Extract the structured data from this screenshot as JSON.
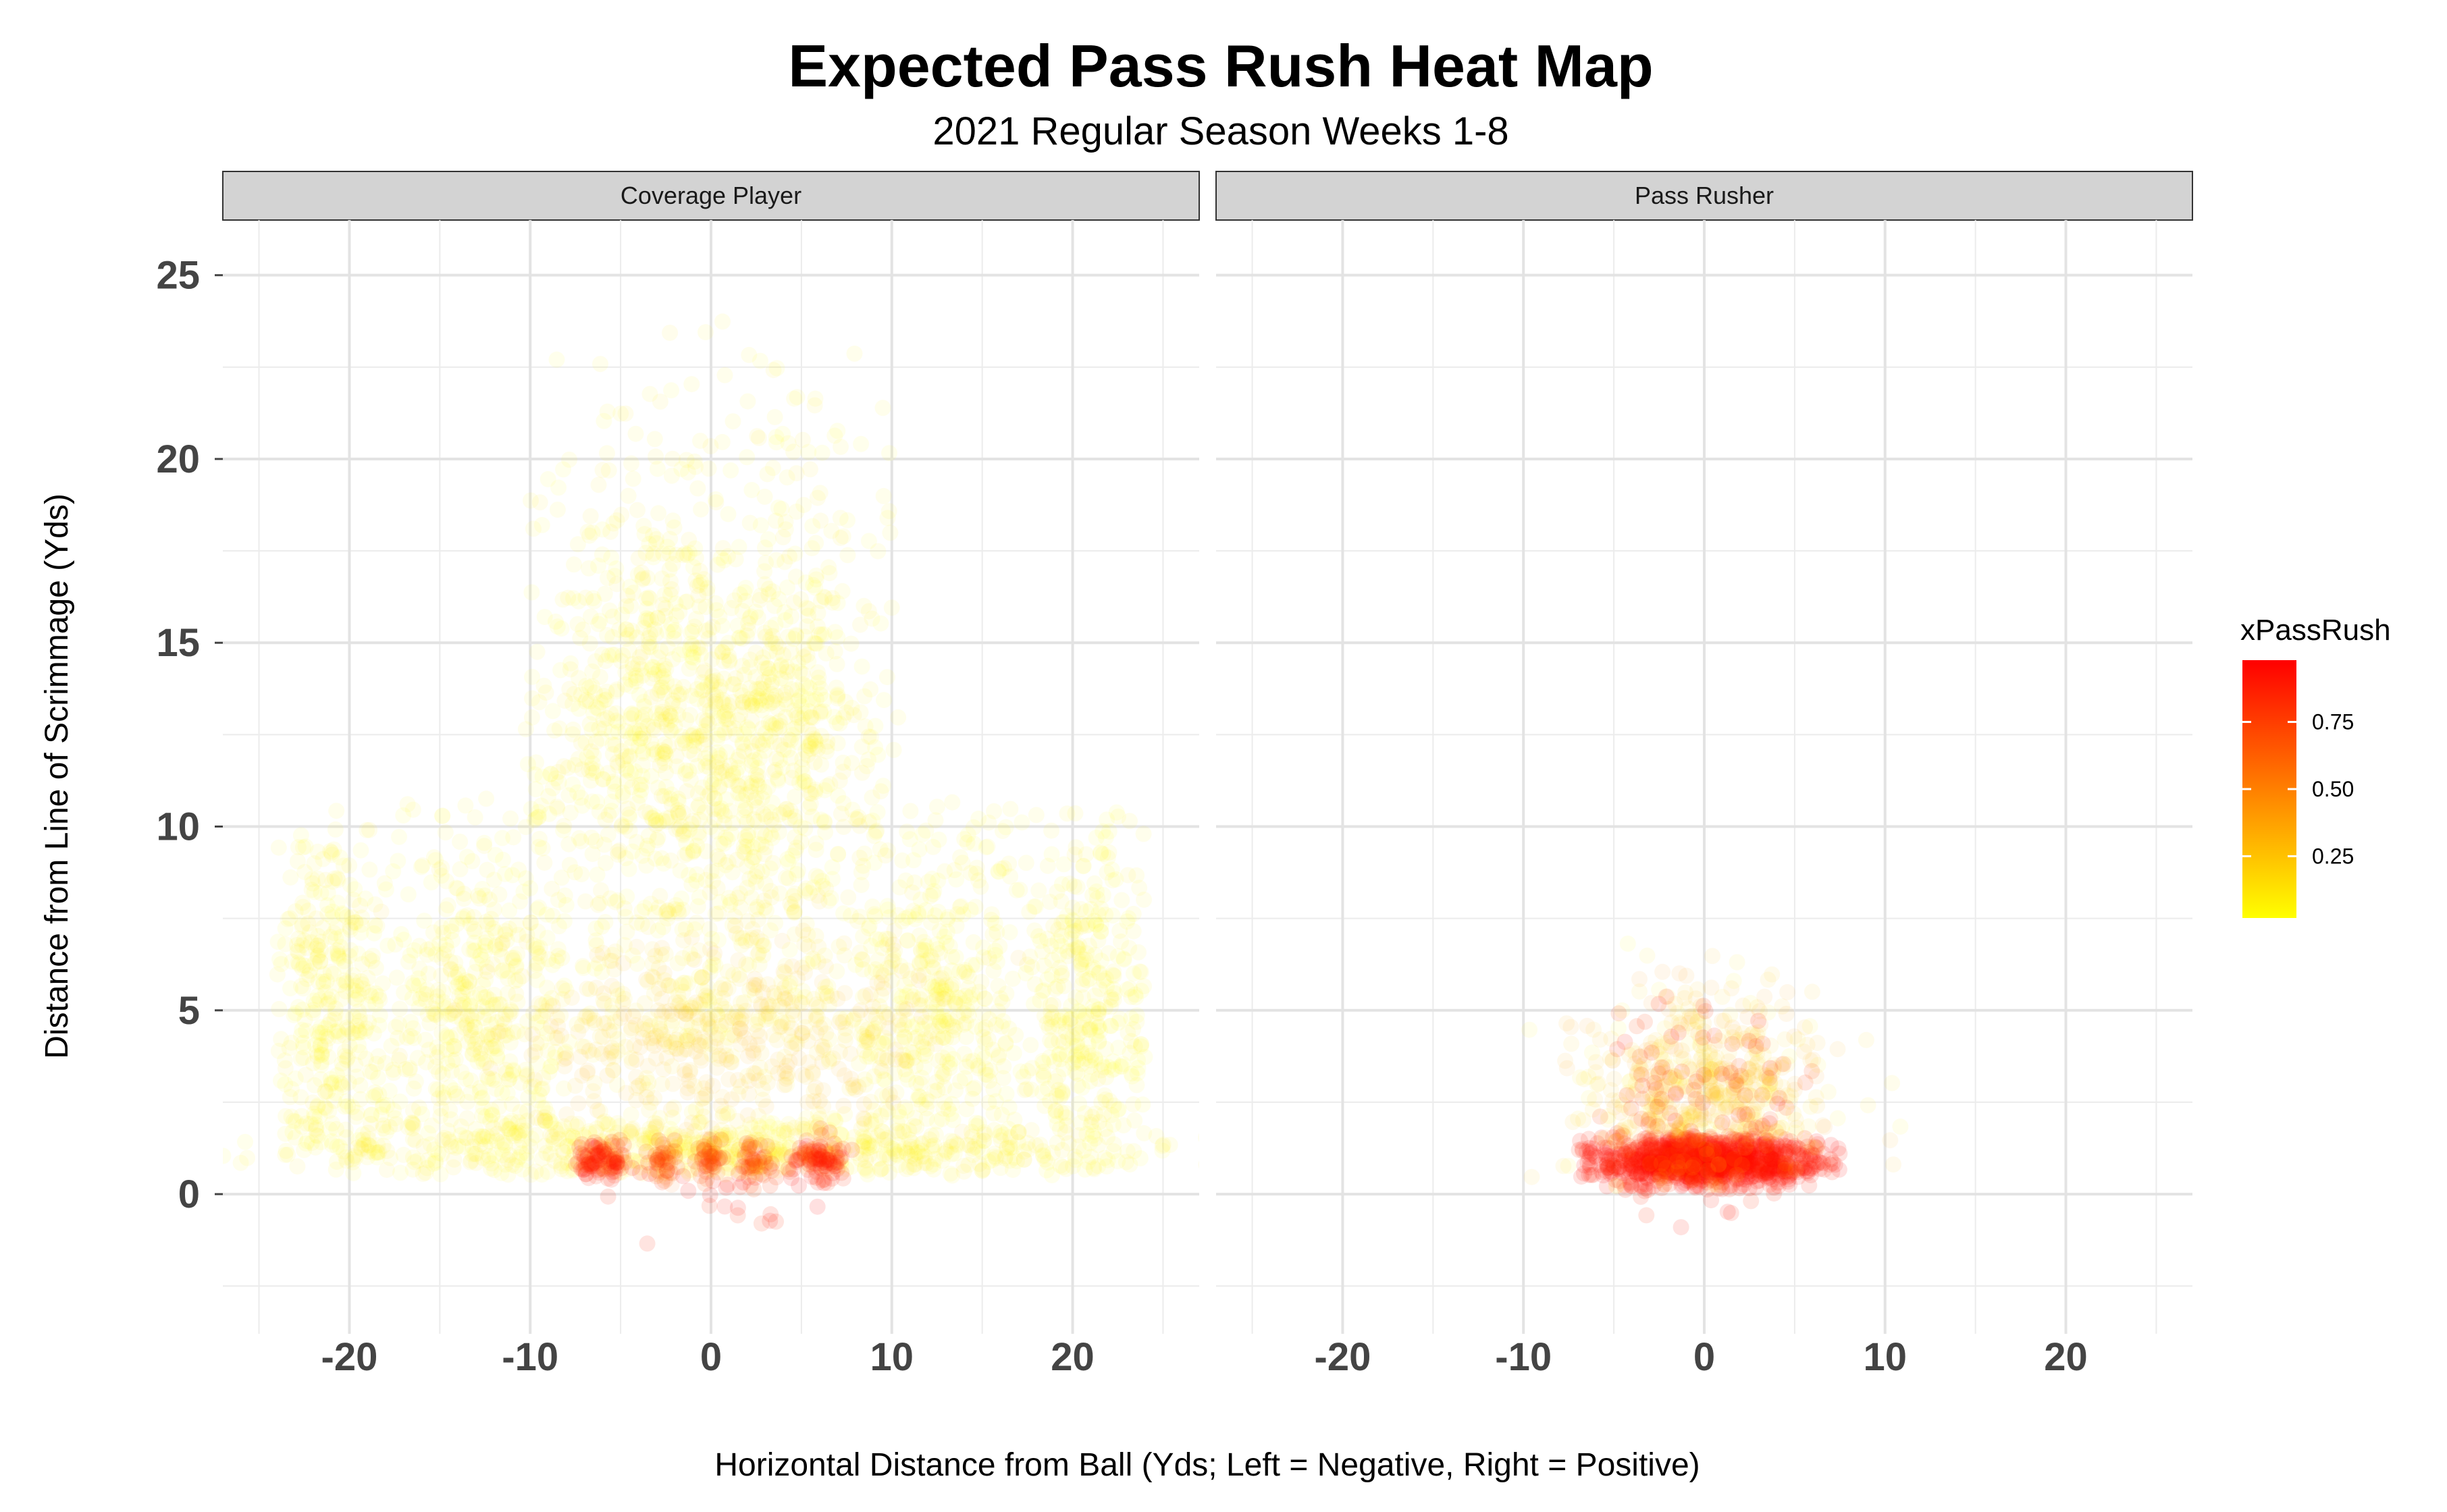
{
  "chart_data": {
    "type": "scatter",
    "title": "Expected Pass Rush Heat Map",
    "subtitle": "2021 Regular Season Weeks 1-8",
    "xlabel": "Horizontal Distance from Ball (Yds; Left = Negative, Right = Positive)",
    "ylabel": "Distance from Line of Scrimmage (Yds)",
    "xlim": [
      -27,
      27
    ],
    "ylim": [
      -3.8,
      26.5
    ],
    "x_ticks": [
      "-20",
      "-10",
      "0",
      "10",
      "20"
    ],
    "x_tick_values": [
      -20,
      -10,
      0,
      10,
      20
    ],
    "y_ticks": [
      "0",
      "5",
      "10",
      "15",
      "20",
      "25"
    ],
    "y_tick_values": [
      0,
      5,
      10,
      15,
      20,
      25
    ],
    "grid": true,
    "legend": {
      "title": "xPassRush",
      "placement": "right",
      "labels": [
        "0.75",
        "0.50",
        "0.25"
      ],
      "label_values": [
        0.75,
        0.5,
        0.25
      ],
      "range": [
        0.02,
        0.98
      ],
      "color_low": "#ffff00",
      "color_high": "#ff0000"
    },
    "panels": [
      {
        "name": "Coverage Player",
        "clusters": [
          {
            "x": 0,
            "y": 12,
            "sx": 6,
            "sy": 5,
            "xmin": -10,
            "xmax": 10,
            "ymin": 4,
            "ymax": 24,
            "n": 900,
            "xpr": [
              0.02,
              0.12
            ]
          },
          {
            "x": -4,
            "y": 13,
            "sx": 2.5,
            "sy": 2.5,
            "n": 260,
            "xpr": [
              0.02,
              0.1
            ]
          },
          {
            "x": 4,
            "y": 13,
            "sx": 2.5,
            "sy": 2.5,
            "n": 260,
            "xpr": [
              0.02,
              0.1
            ]
          },
          {
            "x": -21,
            "y": 5,
            "sx": 2,
            "sy": 3,
            "xmin": -24,
            "xmax": -17,
            "ymin": 0.5,
            "ymax": 10.5,
            "n": 380,
            "xpr": [
              0.02,
              0.1
            ]
          },
          {
            "x": 21,
            "y": 5,
            "sx": 2,
            "sy": 3,
            "xmin": 17,
            "xmax": 24,
            "ymin": 0.5,
            "ymax": 10.5,
            "n": 380,
            "xpr": [
              0.02,
              0.1
            ]
          },
          {
            "x": -13,
            "y": 5,
            "sx": 3,
            "sy": 2.8,
            "xmin": -17,
            "xmax": -8,
            "ymin": 0.5,
            "ymax": 11,
            "n": 420,
            "xpr": [
              0.02,
              0.1
            ]
          },
          {
            "x": 13,
            "y": 5,
            "sx": 3,
            "sy": 2.8,
            "xmin": 8,
            "xmax": 17,
            "ymin": 0.5,
            "ymax": 11,
            "n": 420,
            "xpr": [
              0.02,
              0.1
            ]
          },
          {
            "x": 0,
            "y": 4.5,
            "sx": 6,
            "sy": 1.3,
            "ymin": 1.5,
            "ymax": 8,
            "n": 550,
            "xpr": [
              0.05,
              0.35
            ]
          },
          {
            "x": 0,
            "y": 1.2,
            "sx": 11,
            "sy": 0.5,
            "ymin": 0.5,
            "ymax": 2.5,
            "n": 700,
            "xpr": [
              0.02,
              0.12
            ]
          },
          {
            "x": -6,
            "y": 0.9,
            "sx": 0.7,
            "sy": 0.3,
            "n": 90,
            "xpr": [
              0.75,
              0.98
            ]
          },
          {
            "x": 6,
            "y": 0.9,
            "sx": 0.7,
            "sy": 0.3,
            "n": 90,
            "xpr": [
              0.75,
              0.98
            ]
          },
          {
            "x": -2.5,
            "y": 0.9,
            "sx": 0.4,
            "sy": 0.3,
            "n": 40,
            "xpr": [
              0.55,
              0.9
            ]
          },
          {
            "x": 0,
            "y": 0.9,
            "sx": 0.4,
            "sy": 0.3,
            "n": 40,
            "xpr": [
              0.55,
              0.9
            ]
          },
          {
            "x": 2.5,
            "y": 0.9,
            "sx": 0.4,
            "sy": 0.3,
            "n": 40,
            "xpr": [
              0.55,
              0.9
            ]
          },
          {
            "x": 0,
            "y": 0.5,
            "sx": 2.5,
            "sy": 0.8,
            "ymin": -1.7,
            "ymax": 1,
            "n": 30,
            "xpr": [
              0.8,
              0.98
            ]
          }
        ]
      },
      {
        "name": "Pass Rusher",
        "clusters": [
          {
            "x": 0,
            "y": 0.9,
            "sx": 3.5,
            "sy": 0.35,
            "xmin": -7,
            "xmax": 7.5,
            "ymin": 0.1,
            "ymax": 1.6,
            "n": 900,
            "xpr": [
              0.85,
              0.98
            ]
          },
          {
            "x": 0,
            "y": 0.8,
            "sx": 2.5,
            "sy": 0.6,
            "xmin": -6,
            "xmax": 6,
            "ymin": -1.7,
            "ymax": 1,
            "n": 60,
            "xpr": [
              0.8,
              0.98
            ]
          },
          {
            "x": 0,
            "y": 3,
            "sx": 3.5,
            "sy": 1.4,
            "xmin": -8,
            "xmax": 8,
            "ymin": 1.4,
            "ymax": 7,
            "n": 350,
            "xpr": [
              0.05,
              0.45
            ]
          },
          {
            "x": 0,
            "y": 2,
            "sx": 4.5,
            "sy": 1.5,
            "xmin": -10,
            "xmax": 14,
            "ymin": 0.2,
            "ymax": 11,
            "n": 150,
            "xpr": [
              0.02,
              0.3
            ]
          },
          {
            "x": 0,
            "y": 2.5,
            "sx": 3,
            "sy": 1.5,
            "xmin": -6,
            "xmax": 6,
            "ymin": 1,
            "ymax": 6,
            "n": 90,
            "xpr": [
              0.7,
              0.95
            ]
          }
        ]
      }
    ]
  }
}
